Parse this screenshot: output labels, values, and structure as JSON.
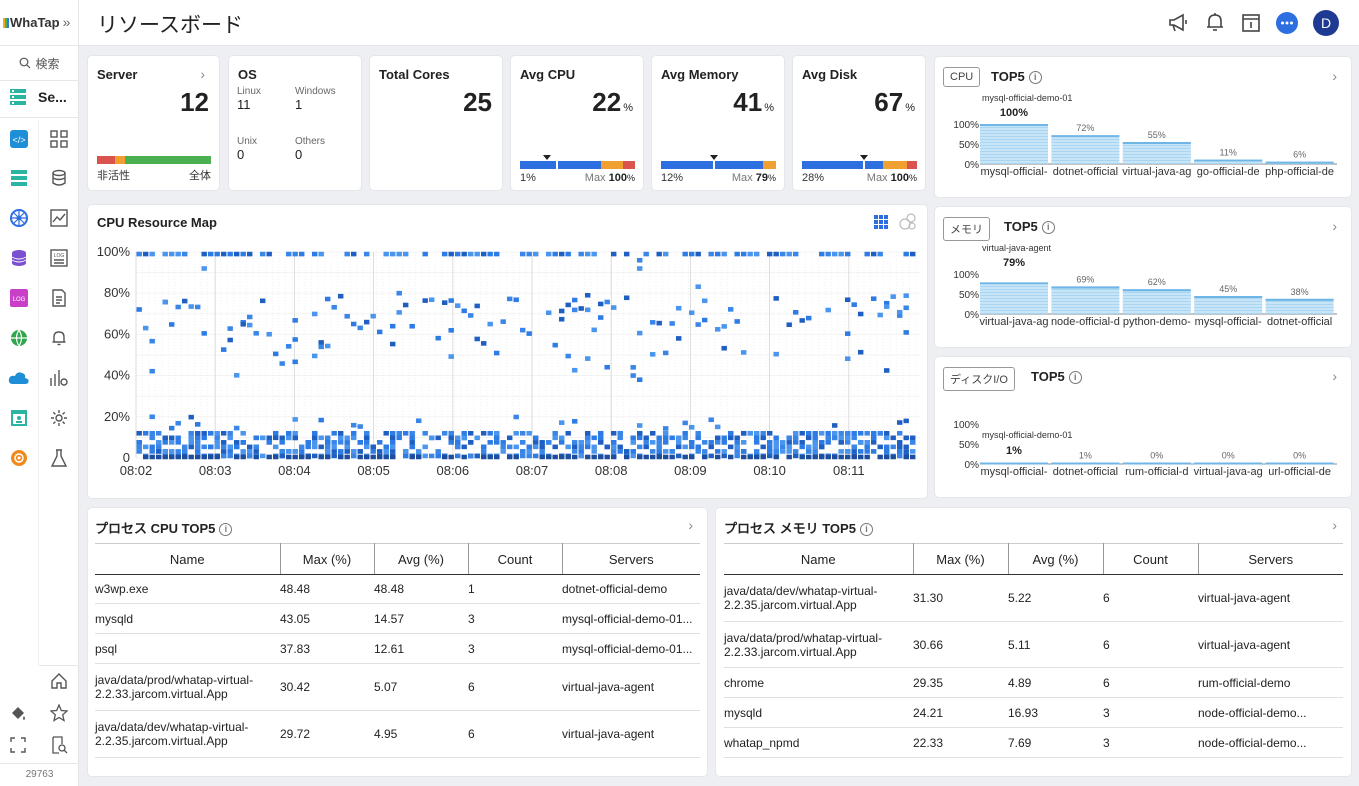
{
  "app": {
    "logo": "WhaTap",
    "title": "リソースボード",
    "footer_id": "29763"
  },
  "sidebar": {
    "search_label": "検索",
    "project_label": "Se..."
  },
  "header_icons": [
    "megaphone-icon",
    "bell-icon",
    "panel-icon",
    "chat-icon",
    "avatar"
  ],
  "avatar_letter": "D",
  "summary": {
    "server": {
      "title": "Server",
      "value": "12",
      "left_label": "非活性",
      "right_label": "全体"
    },
    "os": {
      "title": "OS",
      "items": [
        {
          "label": "Linux",
          "value": "11"
        },
        {
          "label": "Windows",
          "value": "1"
        },
        {
          "label": "Unix",
          "value": "0"
        },
        {
          "label": "Others",
          "value": "0"
        }
      ]
    },
    "cores": {
      "title": "Total Cores",
      "value": "25"
    },
    "cpu": {
      "title": "Avg CPU",
      "value": "22",
      "unit": "%",
      "min": "1%",
      "max_label": "Max",
      "max": "100",
      "max_unit": "%"
    },
    "memory": {
      "title": "Avg Memory",
      "value": "41",
      "unit": "%",
      "min": "12%",
      "max_label": "Max",
      "max": "79",
      "max_unit": "%"
    },
    "disk": {
      "title": "Avg Disk",
      "value": "67",
      "unit": "%",
      "min": "28%",
      "max_label": "Max",
      "max": "100",
      "max_unit": "%"
    }
  },
  "resource_map": {
    "title": "CPU Resource Map",
    "y_labels": [
      "100%",
      "80%",
      "60%",
      "40%",
      "20%",
      "0"
    ],
    "x_labels": [
      "08:02",
      "08:03",
      "08:04",
      "08:05",
      "08:06",
      "08:07",
      "08:08",
      "08:09",
      "08:10",
      "08:11"
    ]
  },
  "top5": [
    {
      "tag": "CPU",
      "title": "TOP5",
      "head_label": "mysql-official-demo-01",
      "head_value": "100%",
      "y_labels": [
        "100%",
        "50%",
        "0%"
      ],
      "bars": [
        {
          "label": "mysql-official-",
          "value": 100,
          "text": "100%"
        },
        {
          "label": "dotnet-official",
          "value": 72,
          "text": "72%"
        },
        {
          "label": "virtual-java-ag",
          "value": 55,
          "text": "55%"
        },
        {
          "label": "go-official-de",
          "value": 11,
          "text": "11%"
        },
        {
          "label": "php-official-de",
          "value": 6,
          "text": "6%"
        }
      ]
    },
    {
      "tag": "メモリ",
      "title": "TOP5",
      "head_label": "virtual-java-agent",
      "head_value": "79%",
      "y_labels": [
        "100%",
        "50%",
        "0%"
      ],
      "bars": [
        {
          "label": "virtual-java-ag",
          "value": 79,
          "text": "79%"
        },
        {
          "label": "node-official-d",
          "value": 69,
          "text": "69%"
        },
        {
          "label": "python-demo-",
          "value": 62,
          "text": "62%"
        },
        {
          "label": "mysql-official-",
          "value": 45,
          "text": "45%"
        },
        {
          "label": "dotnet-official",
          "value": 38,
          "text": "38%"
        }
      ]
    },
    {
      "tag": "ディスクI/O",
      "title": "TOP5",
      "head_label": "mysql-official-demo-01",
      "head_value": "1%",
      "y_labels": [
        "100%",
        "50%",
        "0%"
      ],
      "bars": [
        {
          "label": "mysql-official-",
          "value": 1,
          "text": "1%"
        },
        {
          "label": "dotnet-official",
          "value": 1,
          "text": "1%"
        },
        {
          "label": "rum-official-d",
          "value": 0,
          "text": "0%"
        },
        {
          "label": "virtual-java-ag",
          "value": 0,
          "text": "0%"
        },
        {
          "label": "url-official-de",
          "value": 0,
          "text": "0%"
        }
      ]
    }
  ],
  "proc_cpu": {
    "title": "プロセス CPU TOP5",
    "headers": [
      "Name",
      "Max (%)",
      "Avg (%)",
      "Count",
      "Servers"
    ],
    "rows": [
      [
        "w3wp.exe",
        "48.48",
        "48.48",
        "1",
        "dotnet-official-demo"
      ],
      [
        "mysqld",
        "43.05",
        "14.57",
        "3",
        "mysql-official-demo-01..."
      ],
      [
        "psql",
        "37.83",
        "12.61",
        "3",
        "mysql-official-demo-01..."
      ],
      [
        "java/data/prod/whatap-virtual-2.2.33.jarcom.virtual.App",
        "30.42",
        "5.07",
        "6",
        "virtual-java-agent"
      ],
      [
        "java/data/dev/whatap-virtual-2.2.35.jarcom.virtual.App",
        "29.72",
        "4.95",
        "6",
        "virtual-java-agent"
      ]
    ]
  },
  "proc_mem": {
    "title": "プロセス メモリ TOP5",
    "headers": [
      "Name",
      "Max (%)",
      "Avg (%)",
      "Count",
      "Servers"
    ],
    "rows": [
      [
        "java/data/dev/whatap-virtual-2.2.35.jarcom.virtual.App",
        "31.30",
        "5.22",
        "6",
        "virtual-java-agent"
      ],
      [
        "java/data/prod/whatap-virtual-2.2.33.jarcom.virtual.App",
        "30.66",
        "5.11",
        "6",
        "virtual-java-agent"
      ],
      [
        "chrome",
        "29.35",
        "4.89",
        "6",
        "rum-official-demo"
      ],
      [
        "mysqld",
        "24.21",
        "16.93",
        "3",
        "node-official-demo..."
      ],
      [
        "whatap_npmd",
        "22.33",
        "7.69",
        "3",
        "node-official-demo..."
      ]
    ]
  },
  "colors": {
    "accent": "#2d7be5",
    "bar_light": "#8ec7ea",
    "red": "#d9534f",
    "orange": "#f0a030",
    "green": "#4caf50"
  }
}
